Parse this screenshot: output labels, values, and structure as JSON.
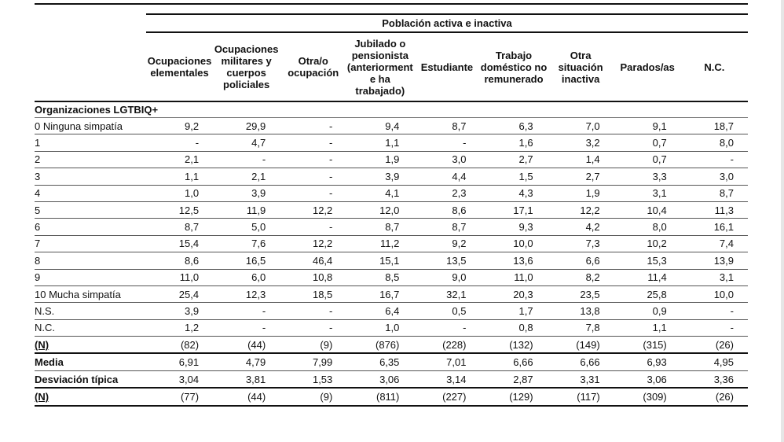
{
  "group_header": "Población activa e inactiva",
  "columns": [
    "Ocupaciones elementales",
    "Ocupaciones militares y cuerpos policiales",
    "Otra/o ocupación",
    "Jubilado o pensionista (anteriorment e ha trabajado)",
    "Estudiante",
    "Trabajo doméstico no remunerado",
    "Otra situación inactiva",
    "Parados/as",
    "N.C."
  ],
  "section_title": "Organizaciones LGTBIQ+",
  "rows": [
    {
      "label": "0 Ninguna simpatía",
      "values": [
        "9,2",
        "29,9",
        "-",
        "9,4",
        "8,7",
        "6,3",
        "7,0",
        "9,1",
        "18,7"
      ]
    },
    {
      "label": "1",
      "values": [
        "-",
        "4,7",
        "-",
        "1,1",
        "-",
        "1,6",
        "3,2",
        "0,7",
        "8,0"
      ]
    },
    {
      "label": "2",
      "values": [
        "2,1",
        "-",
        "-",
        "1,9",
        "3,0",
        "2,7",
        "1,4",
        "0,7",
        "-"
      ]
    },
    {
      "label": "3",
      "values": [
        "1,1",
        "2,1",
        "-",
        "3,9",
        "4,4",
        "1,5",
        "2,7",
        "3,3",
        "3,0"
      ]
    },
    {
      "label": "4",
      "values": [
        "1,0",
        "3,9",
        "-",
        "4,1",
        "2,3",
        "4,3",
        "1,9",
        "3,1",
        "8,7"
      ]
    },
    {
      "label": "5",
      "values": [
        "12,5",
        "11,9",
        "12,2",
        "12,0",
        "8,6",
        "17,1",
        "12,2",
        "10,4",
        "11,3"
      ]
    },
    {
      "label": "6",
      "values": [
        "8,7",
        "5,0",
        "-",
        "8,7",
        "8,7",
        "9,3",
        "4,2",
        "8,0",
        "16,1"
      ]
    },
    {
      "label": "7",
      "values": [
        "15,4",
        "7,6",
        "12,2",
        "11,2",
        "9,2",
        "10,0",
        "7,3",
        "10,2",
        "7,4"
      ]
    },
    {
      "label": "8",
      "values": [
        "8,6",
        "16,5",
        "46,4",
        "15,1",
        "13,5",
        "13,6",
        "6,6",
        "15,3",
        "13,9"
      ]
    },
    {
      "label": "9",
      "values": [
        "11,0",
        "6,0",
        "10,8",
        "8,5",
        "9,0",
        "11,0",
        "8,2",
        "11,4",
        "3,1"
      ]
    },
    {
      "label": "10 Mucha simpatía",
      "values": [
        "25,4",
        "12,3",
        "18,5",
        "16,7",
        "32,1",
        "20,3",
        "23,5",
        "25,8",
        "10,0"
      ]
    },
    {
      "label": "N.S.",
      "values": [
        "3,9",
        "-",
        "-",
        "6,4",
        "0,5",
        "1,7",
        "13,8",
        "0,9",
        "-"
      ]
    },
    {
      "label": "N.C.",
      "values": [
        "1,2",
        "-",
        "-",
        "1,0",
        "-",
        "0,8",
        "7,8",
        "1,1",
        "-"
      ]
    },
    {
      "label": "(N)",
      "values": [
        "(82)",
        "(44)",
        "(9)",
        "(876)",
        "(228)",
        "(132)",
        "(149)",
        "(315)",
        "(26)"
      ]
    },
    {
      "label": "Media",
      "values": [
        "6,91",
        "4,79",
        "7,99",
        "6,35",
        "7,01",
        "6,66",
        "6,66",
        "6,93",
        "4,95"
      ]
    },
    {
      "label": "Desviación típica",
      "values": [
        "3,04",
        "3,81",
        "1,53",
        "3,06",
        "3,14",
        "2,87",
        "3,31",
        "3,06",
        "3,36"
      ]
    },
    {
      "label": "(N)",
      "values": [
        "(77)",
        "(44)",
        "(9)",
        "(811)",
        "(227)",
        "(129)",
        "(117)",
        "(309)",
        "(26)"
      ]
    }
  ]
}
